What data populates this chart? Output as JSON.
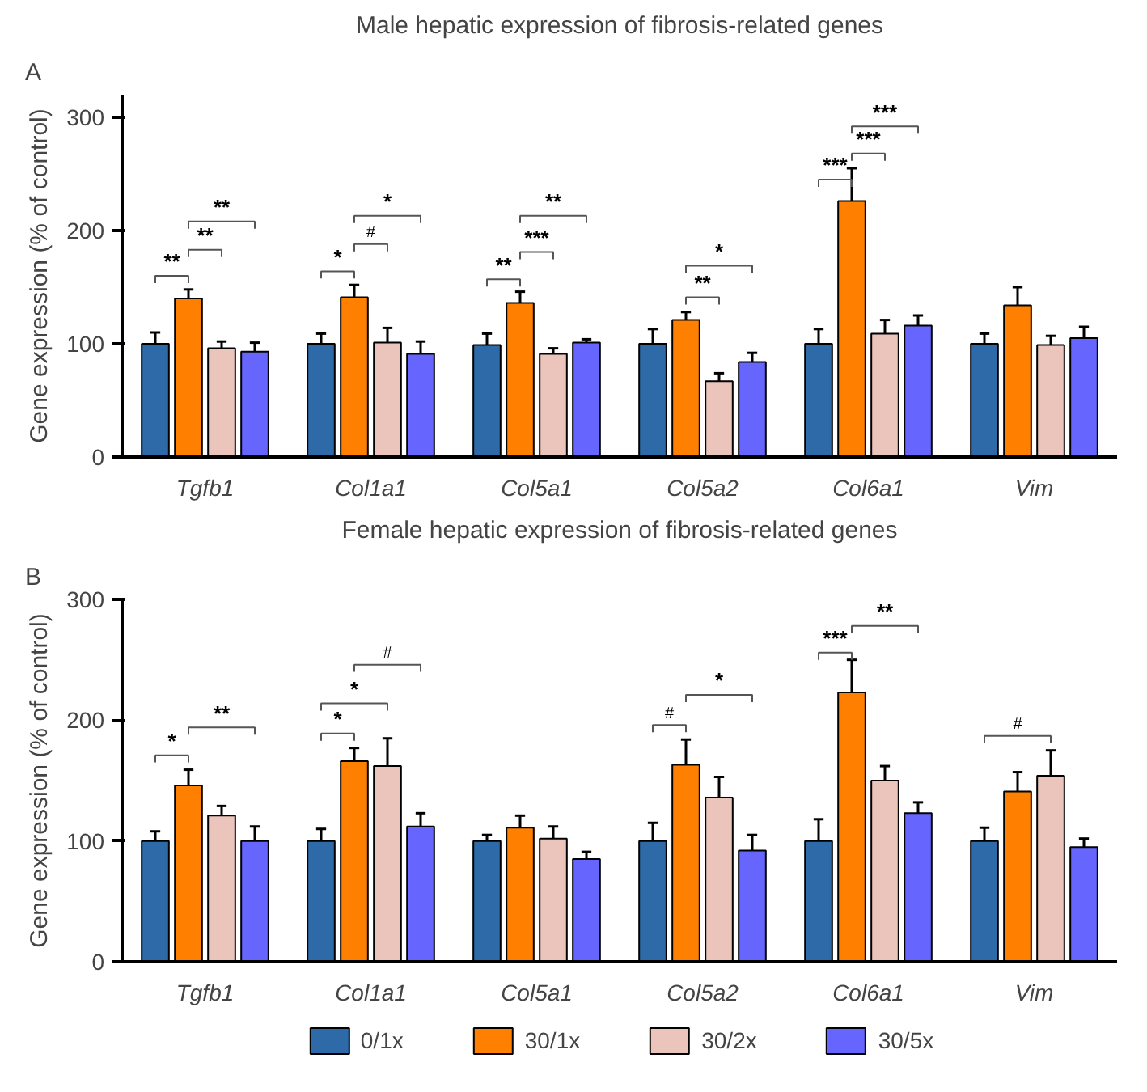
{
  "chart_data": [
    {
      "type": "bar",
      "title": "Male hepatic expression of fibrosis-related genes",
      "ylabel": "Gene expression (% of control)",
      "categories": [
        "Tgfb1",
        "Col1a1",
        "Col5a1",
        "Col5a2",
        "Col6a1",
        "Vim"
      ],
      "ylim": [
        0,
        320
      ],
      "yticks": [
        0,
        100,
        200,
        300
      ],
      "grid": false,
      "series": [
        {
          "color": "#2e6aa8",
          "values": [
            100,
            100,
            99,
            100,
            100,
            100
          ],
          "errors": [
            [
              100,
              110
            ],
            [
              100,
              109
            ],
            [
              99,
              109
            ],
            [
              100,
              113
            ],
            [
              100,
              113
            ],
            [
              100,
              109
            ]
          ]
        },
        {
          "color": "#ff7f00",
          "values": [
            140,
            141,
            136,
            121,
            226,
            134
          ],
          "errors": [
            [
              140,
              148
            ],
            [
              141,
              152
            ],
            [
              136,
              146
            ],
            [
              121,
              128
            ],
            [
              226,
              255
            ],
            [
              134,
              150
            ]
          ]
        },
        {
          "color": "#ebc4bc",
          "values": [
            96,
            101,
            91,
            67,
            109,
            99
          ],
          "errors": [
            [
              96,
              102
            ],
            [
              101,
              114
            ],
            [
              91,
              96
            ],
            [
              67,
              74
            ],
            [
              109,
              121
            ],
            [
              99,
              107
            ]
          ]
        },
        {
          "color": "#6666ff",
          "values": [
            93,
            91,
            101,
            84,
            116,
            105
          ],
          "errors": [
            [
              93,
              101
            ],
            [
              91,
              102
            ],
            [
              101,
              104
            ],
            [
              84,
              92
            ],
            [
              116,
              125
            ],
            [
              105,
              115
            ]
          ]
        }
      ],
      "annotations": [
        "A",
        "**",
        "**",
        "**",
        "*",
        "#",
        "*",
        "**",
        "***",
        "**",
        "**",
        "*",
        "***",
        "***",
        "***"
      ]
    },
    {
      "type": "bar",
      "title": "Female hepatic expression of fibrosis-related genes",
      "ylabel": "Gene expression (% of control)",
      "categories": [
        "Tgfb1",
        "Col1a1",
        "Col5a1",
        "Col5a2",
        "Col6a1",
        "Vim"
      ],
      "ylim": [
        0,
        300
      ],
      "yticks": [
        0,
        100,
        200,
        300
      ],
      "grid": false,
      "legend": "bottom",
      "series": [
        {
          "name": "0/1x",
          "color": "#2e6aa8",
          "values": [
            100,
            100,
            100,
            100,
            100,
            100
          ],
          "errors": [
            [
              100,
              108
            ],
            [
              100,
              110
            ],
            [
              100,
              105
            ],
            [
              100,
              115
            ],
            [
              100,
              118
            ],
            [
              100,
              111
            ]
          ]
        },
        {
          "name": "30/1x",
          "color": "#ff7f00",
          "values": [
            146,
            166,
            111,
            163,
            223,
            141
          ],
          "errors": [
            [
              146,
              159
            ],
            [
              166,
              177
            ],
            [
              111,
              121
            ],
            [
              163,
              184
            ],
            [
              223,
              250
            ],
            [
              141,
              157
            ]
          ]
        },
        {
          "name": "30/2x",
          "color": "#ebc4bc",
          "values": [
            121,
            162,
            102,
            136,
            150,
            154
          ],
          "errors": [
            [
              121,
              129
            ],
            [
              162,
              185
            ],
            [
              102,
              112
            ],
            [
              136,
              153
            ],
            [
              150,
              162
            ],
            [
              154,
              175
            ]
          ]
        },
        {
          "name": "30/5x",
          "color": "#6666ff",
          "values": [
            100,
            112,
            85,
            92,
            123,
            95
          ],
          "errors": [
            [
              100,
              112
            ],
            [
              112,
              123
            ],
            [
              85,
              91
            ],
            [
              92,
              105
            ],
            [
              123,
              132
            ],
            [
              95,
              102
            ]
          ]
        }
      ],
      "annotations": [
        "B",
        "*",
        "**",
        "*",
        "*",
        "#",
        "#",
        "*",
        "***",
        "**",
        "#"
      ]
    }
  ]
}
